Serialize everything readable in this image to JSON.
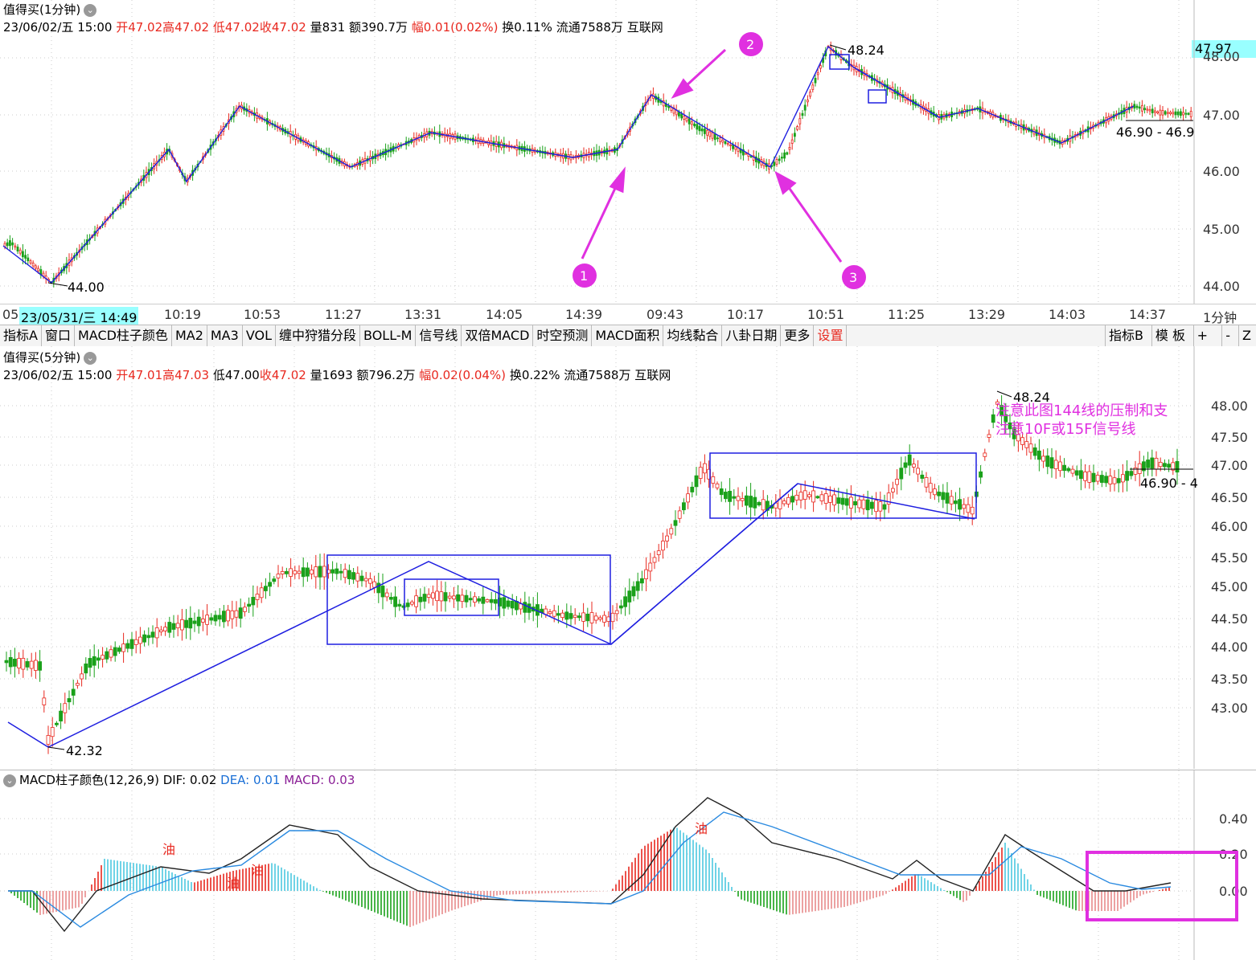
{
  "top_chart": {
    "title": "值得买(1分钟)",
    "info": {
      "date": "23/06/02/五 15:00",
      "open": "开47.02",
      "high": "高47.02",
      "low": "低47.02",
      "close": "收47.02",
      "vol": "量831",
      "amt": "额390.7万",
      "range": "幅0.01(0.02%)",
      "turn": "换0.11%",
      "float": "流通7588万",
      "source": "互联网"
    },
    "price_box": "47.97",
    "y_ticks": [
      "47.00",
      "46.00",
      "45.00",
      "44.00"
    ],
    "labels": {
      "low": "44.00",
      "high": "48.24",
      "right": "46.90 - 46.9"
    },
    "markers": [
      "1",
      "2",
      "3"
    ]
  },
  "time_axis": {
    "labels": [
      "05",
      "23/05/31/三 14:49",
      "10:19",
      "10:53",
      "11:27",
      "13:31",
      "14:05",
      "14:39",
      "09:43",
      "10:17",
      "10:51",
      "11:25",
      "13:29",
      "14:03",
      "14:37"
    ],
    "period": "1分钟"
  },
  "tabs": [
    "指标A",
    "窗口",
    "MACD柱子颜色",
    "MA2",
    "MA3",
    "VOL",
    "缠中狩猎分段",
    "BOLL-M",
    "信号线",
    "双倍MACD",
    "时空预测",
    "MACD面积",
    "均线黏合",
    "八卦日期",
    "更多",
    "设置"
  ],
  "tabs_right": [
    "指标B",
    "模 板",
    "+",
    "-",
    "Z"
  ],
  "mid_chart": {
    "title": "值得买(5分钟)",
    "info": {
      "date": "23/06/02/五 15:00",
      "open": "开47.01",
      "high": "高47.03",
      "low": "低47.00",
      "close": "收47.02",
      "vol": "量1693",
      "amt": "额796.2万",
      "range": "幅0.02(0.04%)",
      "turn": "换0.22%",
      "float": "流通7588万",
      "source": "互联网"
    },
    "y_ticks": [
      "48.00",
      "47.50",
      "47.00",
      "46.50",
      "46.00",
      "45.50",
      "45.00",
      "44.50",
      "44.00",
      "43.50",
      "43.00"
    ],
    "labels": {
      "low": "42.32",
      "high": "48.24",
      "right": "46.90 - 4"
    },
    "note1": "注意此图144线的压制和支",
    "note2": "注意10F或15F信号线"
  },
  "macd": {
    "title": "MACD柱子颜色(12,26,9)",
    "dif": "DIF: 0.02",
    "dea": "DEA: 0.01",
    "macd": "MACD: 0.03",
    "y_ticks": [
      "0.40",
      "0.20",
      "0.00"
    ],
    "oil": "油"
  },
  "colors": {
    "up": "#e8281f",
    "down": "#1aa11a",
    "zigzag": "#1f1fe0",
    "magenta": "#e030e0",
    "dif": "#222222",
    "dea": "#2a8ae0",
    "cyan": "#4cc8e0"
  }
}
